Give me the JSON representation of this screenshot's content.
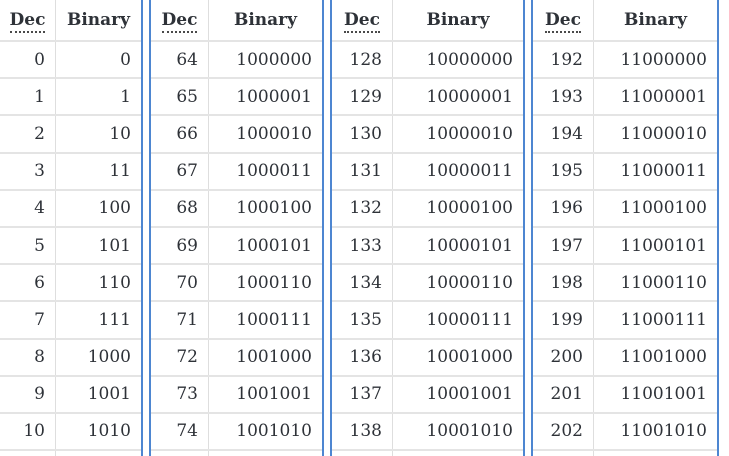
{
  "colors": {
    "accent_blue": "#4d86d1",
    "grid_line": "#e4e4e4",
    "text": "#2e3238"
  },
  "column_headers": {
    "dec": "Dec",
    "binary": "Binary"
  },
  "tables": [
    {
      "rows": [
        {
          "dec": "0",
          "bin": "0"
        },
        {
          "dec": "1",
          "bin": "1"
        },
        {
          "dec": "2",
          "bin": "10"
        },
        {
          "dec": "3",
          "bin": "11"
        },
        {
          "dec": "4",
          "bin": "100"
        },
        {
          "dec": "5",
          "bin": "101"
        },
        {
          "dec": "6",
          "bin": "110"
        },
        {
          "dec": "7",
          "bin": "111"
        },
        {
          "dec": "8",
          "bin": "1000"
        },
        {
          "dec": "9",
          "bin": "1001"
        },
        {
          "dec": "10",
          "bin": "1010"
        }
      ]
    },
    {
      "rows": [
        {
          "dec": "64",
          "bin": "1000000"
        },
        {
          "dec": "65",
          "bin": "1000001"
        },
        {
          "dec": "66",
          "bin": "1000010"
        },
        {
          "dec": "67",
          "bin": "1000011"
        },
        {
          "dec": "68",
          "bin": "1000100"
        },
        {
          "dec": "69",
          "bin": "1000101"
        },
        {
          "dec": "70",
          "bin": "1000110"
        },
        {
          "dec": "71",
          "bin": "1000111"
        },
        {
          "dec": "72",
          "bin": "1001000"
        },
        {
          "dec": "73",
          "bin": "1001001"
        },
        {
          "dec": "74",
          "bin": "1001010"
        }
      ]
    },
    {
      "rows": [
        {
          "dec": "128",
          "bin": "10000000"
        },
        {
          "dec": "129",
          "bin": "10000001"
        },
        {
          "dec": "130",
          "bin": "10000010"
        },
        {
          "dec": "131",
          "bin": "10000011"
        },
        {
          "dec": "132",
          "bin": "10000100"
        },
        {
          "dec": "133",
          "bin": "10000101"
        },
        {
          "dec": "134",
          "bin": "10000110"
        },
        {
          "dec": "135",
          "bin": "10000111"
        },
        {
          "dec": "136",
          "bin": "10001000"
        },
        {
          "dec": "137",
          "bin": "10001001"
        },
        {
          "dec": "138",
          "bin": "10001010"
        }
      ]
    },
    {
      "rows": [
        {
          "dec": "192",
          "bin": "11000000"
        },
        {
          "dec": "193",
          "bin": "11000001"
        },
        {
          "dec": "194",
          "bin": "11000010"
        },
        {
          "dec": "195",
          "bin": "11000011"
        },
        {
          "dec": "196",
          "bin": "11000100"
        },
        {
          "dec": "197",
          "bin": "11000101"
        },
        {
          "dec": "198",
          "bin": "11000110"
        },
        {
          "dec": "199",
          "bin": "11000111"
        },
        {
          "dec": "200",
          "bin": "11001000"
        },
        {
          "dec": "201",
          "bin": "11001001"
        },
        {
          "dec": "202",
          "bin": "11001010"
        }
      ]
    }
  ]
}
